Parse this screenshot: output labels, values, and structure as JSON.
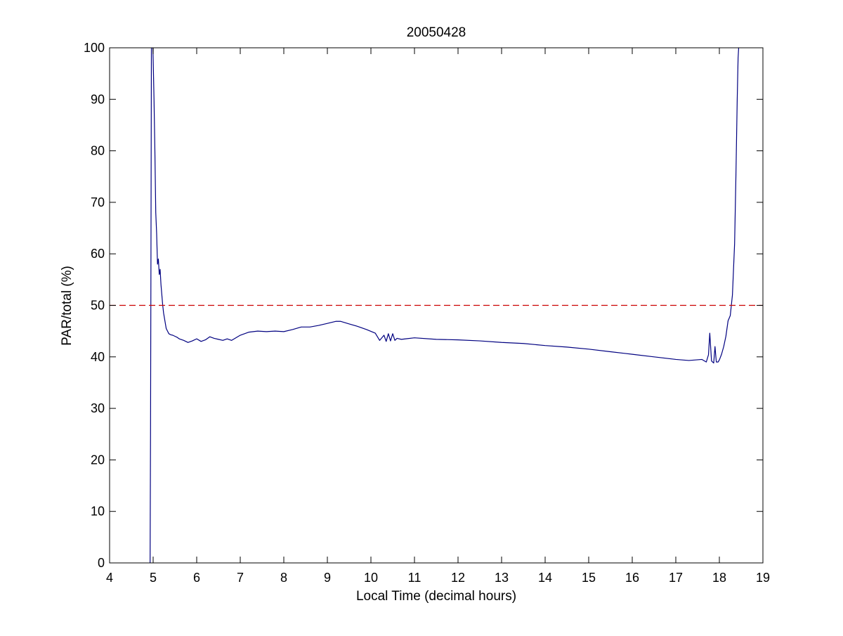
{
  "chart_data": {
    "type": "line",
    "title": "20050428",
    "xlabel": "Local Time (decimal hours)",
    "ylabel": "PAR/total (%)",
    "xlim": [
      4,
      19
    ],
    "ylim": [
      0,
      100
    ],
    "xticks": [
      4,
      5,
      6,
      7,
      8,
      9,
      10,
      11,
      12,
      13,
      14,
      15,
      16,
      17,
      18,
      19
    ],
    "yticks": [
      0,
      10,
      20,
      30,
      40,
      50,
      60,
      70,
      80,
      90,
      100
    ],
    "grid": false,
    "legend": "none",
    "series": [
      {
        "color": "#000080",
        "x": [
          4.93,
          4.94,
          4.95,
          4.96,
          4.97,
          4.99,
          5.0,
          5.02,
          5.04,
          5.06,
          5.08,
          5.1,
          5.12,
          5.14,
          5.16,
          5.18,
          5.2,
          5.22,
          5.24,
          5.27,
          5.3,
          5.33,
          5.36,
          5.4,
          5.45,
          5.5,
          5.55,
          5.6,
          5.7,
          5.8,
          5.9,
          6.0,
          6.1,
          6.2,
          6.3,
          6.4,
          6.5,
          6.6,
          6.7,
          6.8,
          7.0,
          7.2,
          7.4,
          7.6,
          7.8,
          8.0,
          8.2,
          8.4,
          8.6,
          8.8,
          9.0,
          9.2,
          9.3,
          9.5,
          9.7,
          9.9,
          10.1,
          10.2,
          10.3,
          10.35,
          10.4,
          10.45,
          10.5,
          10.55,
          10.6,
          10.7,
          10.8,
          11.0,
          11.5,
          12.0,
          12.5,
          13.0,
          13.5,
          14.0,
          14.5,
          15.0,
          15.5,
          16.0,
          16.5,
          17.0,
          17.3,
          17.6,
          17.7,
          17.75,
          17.78,
          17.82,
          17.87,
          17.9,
          17.93,
          17.97,
          18.0,
          18.05,
          18.1,
          18.15,
          18.2,
          18.25,
          18.3,
          18.35,
          18.38,
          18.41,
          18.43,
          18.45
        ],
        "y": [
          0,
          25,
          60,
          100,
          100,
          101,
          98,
          90,
          80,
          68,
          64,
          58,
          59,
          56,
          57,
          54,
          52,
          50,
          48.5,
          47,
          45.5,
          45,
          44.5,
          44.3,
          44.2,
          44,
          43.8,
          43.5,
          43.2,
          42.8,
          43.1,
          43.5,
          43,
          43.3,
          43.9,
          43.6,
          43.4,
          43.2,
          43.5,
          43.2,
          44.2,
          44.8,
          45,
          44.9,
          45,
          44.9,
          45.3,
          45.8,
          45.8,
          46.1,
          46.5,
          46.9,
          46.9,
          46.4,
          45.9,
          45.3,
          44.6,
          43.2,
          44.2,
          43.0,
          44.5,
          43.1,
          44.5,
          43.2,
          43.6,
          43.4,
          43.5,
          43.7,
          43.4,
          43.3,
          43.1,
          42.8,
          42.6,
          42.2,
          41.9,
          41.5,
          41,
          40.5,
          40,
          39.5,
          39.3,
          39.5,
          39.0,
          40.4,
          44.6,
          39.2,
          38.8,
          42.0,
          39.0,
          39.0,
          39.4,
          40.5,
          42.0,
          44.0,
          47.0,
          48.0,
          52.0,
          62.0,
          75.0,
          90.0,
          98.0,
          101.0
        ]
      },
      {
        "color": "#cc0000",
        "dashed": true,
        "x": [
          4,
          19
        ],
        "y": [
          50,
          50
        ]
      }
    ]
  }
}
